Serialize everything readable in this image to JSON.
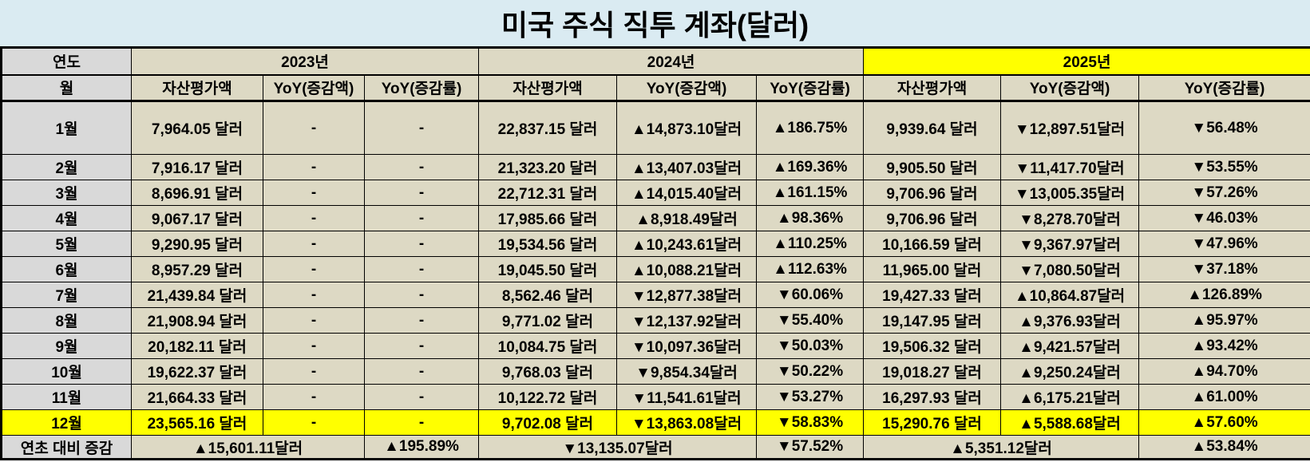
{
  "title": "미국 주식 직투 계좌(달러)",
  "colors": {
    "title_bg": "#DAEBF2",
    "label_bg": "#D9D9D9",
    "cell_bg": "#DDD9C4",
    "highlight_bg": "#FFFF00",
    "up_text": "#FF0000",
    "down_text": "#2020FF"
  },
  "header": {
    "year_label": "연도",
    "month_label": "월",
    "years": [
      {
        "label": "2023년",
        "highlight": false
      },
      {
        "label": "2024년",
        "highlight": false
      },
      {
        "label": "2025년",
        "highlight": true
      }
    ],
    "subcolumns": [
      "자산평가액",
      "YoY(증감액)",
      "YoY(증감률)"
    ]
  },
  "rows": [
    {
      "month": "1월",
      "highlight": false,
      "cells": [
        "7,964.05 달러",
        "-",
        "-",
        "22,837.15 달러",
        "▲14,873.10달러",
        "▲186.75%",
        "9,939.64 달러",
        "▼12,897.51달러",
        "▼56.48%"
      ]
    },
    {
      "month": "2월",
      "highlight": false,
      "cells": [
        "7,916.17 달러",
        "-",
        "-",
        "21,323.20 달러",
        "▲13,407.03달러",
        "▲169.36%",
        "9,905.50 달러",
        "▼11,417.70달러",
        "▼53.55%"
      ]
    },
    {
      "month": "3월",
      "highlight": false,
      "cells": [
        "8,696.91 달러",
        "-",
        "-",
        "22,712.31 달러",
        "▲14,015.40달러",
        "▲161.15%",
        "9,706.96 달러",
        "▼13,005.35달러",
        "▼57.26%"
      ]
    },
    {
      "month": "4월",
      "highlight": false,
      "cells": [
        "9,067.17 달러",
        "-",
        "-",
        "17,985.66 달러",
        "▲8,918.49달러",
        "▲98.36%",
        "9,706.96 달러",
        "▼8,278.70달러",
        "▼46.03%"
      ]
    },
    {
      "month": "5월",
      "highlight": false,
      "cells": [
        "9,290.95 달러",
        "-",
        "-",
        "19,534.56 달러",
        "▲10,243.61달러",
        "▲110.25%",
        "10,166.59 달러",
        "▼9,367.97달러",
        "▼47.96%"
      ]
    },
    {
      "month": "6월",
      "highlight": false,
      "cells": [
        "8,957.29 달러",
        "-",
        "-",
        "19,045.50 달러",
        "▲10,088.21달러",
        "▲112.63%",
        "11,965.00 달러",
        "▼7,080.50달러",
        "▼37.18%"
      ]
    },
    {
      "month": "7월",
      "highlight": false,
      "cells": [
        "21,439.84 달러",
        "-",
        "-",
        "8,562.46 달러",
        "▼12,877.38달러",
        "▼60.06%",
        "19,427.33 달러",
        "▲10,864.87달러",
        "▲126.89%"
      ]
    },
    {
      "month": "8월",
      "highlight": false,
      "cells": [
        "21,908.94 달러",
        "-",
        "-",
        "9,771.02 달러",
        "▼12,137.92달러",
        "▼55.40%",
        "19,147.95 달러",
        "▲9,376.93달러",
        "▲95.97%"
      ]
    },
    {
      "month": "9월",
      "highlight": false,
      "cells": [
        "20,182.11 달러",
        "-",
        "-",
        "10,084.75 달러",
        "▼10,097.36달러",
        "▼50.03%",
        "19,506.32 달러",
        "▲9,421.57달러",
        "▲93.42%"
      ]
    },
    {
      "month": "10월",
      "highlight": false,
      "cells": [
        "19,622.37 달러",
        "-",
        "-",
        "9,768.03 달러",
        "▼9,854.34달러",
        "▼50.22%",
        "19,018.27 달러",
        "▲9,250.24달러",
        "▲94.70%"
      ]
    },
    {
      "month": "11월",
      "highlight": false,
      "cells": [
        "21,664.33 달러",
        "-",
        "-",
        "10,122.72 달러",
        "▼11,541.61달러",
        "▼53.27%",
        "16,297.93 달러",
        "▲6,175.21달러",
        "▲61.00%"
      ]
    },
    {
      "month": "12월",
      "highlight": true,
      "cells": [
        "23,565.16 달러",
        "-",
        "-",
        "9,702.08 달러",
        "▼13,863.08달러",
        "▼58.83%",
        "15,290.76 달러",
        "▲5,588.68달러",
        "▲57.60%"
      ]
    }
  ],
  "footer": {
    "label": "연초 대비 증감",
    "cells": [
      {
        "amount": "▲15,601.11달러",
        "rate": "▲195.89%"
      },
      {
        "amount": "▼13,135.07달러",
        "rate": "▼57.52%"
      },
      {
        "amount": "▲5,351.12달러",
        "rate": "▲53.84%"
      }
    ]
  }
}
